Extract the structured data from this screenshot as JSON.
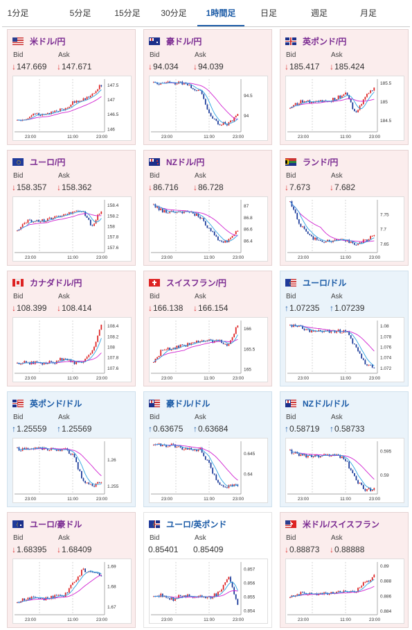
{
  "tabs": [
    "1分足",
    "5分足",
    "15分足",
    "30分足",
    "1時間足",
    "日足",
    "週足",
    "月足"
  ],
  "active_tab": 4,
  "labels": {
    "bid": "Bid",
    "ask": "Ask"
  },
  "x_ticks": [
    "23:00",
    "11:00",
    "23:00"
  ],
  "colors": {
    "up": "#d22",
    "down": "#1a3a9a",
    "ma1": "#d020d0",
    "ma2": "#2aa0e0"
  },
  "cards": [
    {
      "pair": "米ドル/円",
      "flag": "us",
      "dir": "down",
      "bid": "147.669",
      "ask": "147.671",
      "y_ticks": [
        "147.5",
        "147",
        "146.5",
        "146"
      ],
      "ylim": [
        145.9,
        147.7
      ],
      "trend": [
        146.3,
        146.4,
        146.5,
        146.5,
        146.6,
        146.7,
        146.9,
        147.0,
        147.2,
        147.5
      ]
    },
    {
      "pair": "豪ドル/円",
      "flag": "au",
      "dir": "down",
      "bid": "94.034",
      "ask": "94.039",
      "y_ticks": [
        "94.5",
        "94"
      ],
      "ylim": [
        93.6,
        94.9
      ],
      "trend": [
        94.8,
        94.8,
        94.8,
        94.8,
        94.7,
        94.6,
        94.0,
        93.8,
        93.8,
        94.0
      ]
    },
    {
      "pair": "英ポンド/円",
      "flag": "gb",
      "dir": "down",
      "bid": "185.417",
      "ask": "185.424",
      "y_ticks": [
        "185.5",
        "185",
        "184.5"
      ],
      "ylim": [
        184.2,
        185.6
      ],
      "trend": [
        184.8,
        185.0,
        185.0,
        185.0,
        185.0,
        185.1,
        185.2,
        184.7,
        185.1,
        185.4
      ]
    },
    {
      "pair": "ユーロ/円",
      "flag": "eu",
      "dir": "down",
      "bid": "158.357",
      "ask": "158.362",
      "y_ticks": [
        "158.4",
        "158.2",
        "158",
        "157.8",
        "157.6"
      ],
      "ylim": [
        157.5,
        158.5
      ],
      "trend": [
        157.9,
        158.1,
        158.1,
        158.1,
        158.2,
        158.2,
        158.3,
        158.3,
        158.0,
        158.3
      ]
    },
    {
      "pair": "NZドル/円",
      "flag": "nz",
      "dir": "down",
      "bid": "86.716",
      "ask": "86.728",
      "y_ticks": [
        "87",
        "86.8",
        "86.6",
        "86.4"
      ],
      "ylim": [
        86.2,
        87.1
      ],
      "trend": [
        87.0,
        86.9,
        86.9,
        86.9,
        86.9,
        86.8,
        86.6,
        86.4,
        86.4,
        86.6
      ]
    },
    {
      "pair": "ランド/円",
      "flag": "za",
      "dir": "down",
      "bid": "7.673",
      "ask": "7.682",
      "y_ticks": [
        "7.75",
        "7.7",
        "7.65"
      ],
      "ylim": [
        7.62,
        7.8
      ],
      "trend": [
        7.79,
        7.72,
        7.68,
        7.66,
        7.66,
        7.66,
        7.66,
        7.65,
        7.66,
        7.68
      ]
    },
    {
      "pair": "カナダドル/円",
      "flag": "ca",
      "dir": "down",
      "bid": "108.399",
      "ask": "108.414",
      "y_ticks": [
        "108.4",
        "108.2",
        "108",
        "107.8",
        "107.6"
      ],
      "ylim": [
        107.5,
        108.5
      ],
      "trend": [
        107.7,
        107.7,
        107.7,
        107.7,
        107.7,
        107.8,
        107.7,
        107.7,
        107.9,
        108.4
      ]
    },
    {
      "pair": "スイスフラン/円",
      "flag": "ch",
      "dir": "down",
      "bid": "166.138",
      "ask": "166.154",
      "y_ticks": [
        "166",
        "165.5",
        "165"
      ],
      "ylim": [
        164.9,
        166.2
      ],
      "trend": [
        165.2,
        165.5,
        165.5,
        165.6,
        165.6,
        165.7,
        165.7,
        165.7,
        165.6,
        166.1
      ]
    },
    {
      "pair": "ユーロ/ドル",
      "flag": "euus",
      "dir": "up",
      "bid": "1.07235",
      "ask": "1.07239",
      "y_ticks": [
        "1.08",
        "1.078",
        "1.076",
        "1.074",
        "1.072"
      ],
      "ylim": [
        1.071,
        1.081
      ],
      "trend": [
        1.08,
        1.08,
        1.079,
        1.079,
        1.079,
        1.079,
        1.079,
        1.076,
        1.073,
        1.072
      ]
    },
    {
      "pair": "英ポンド/ドル",
      "flag": "gbus",
      "dir": "up",
      "bid": "1.25559",
      "ask": "1.25569",
      "y_ticks": [
        "1.26",
        "1.255"
      ],
      "ylim": [
        1.2535,
        1.2635
      ],
      "trend": [
        1.262,
        1.262,
        1.262,
        1.262,
        1.262,
        1.262,
        1.261,
        1.256,
        1.255,
        1.256
      ]
    },
    {
      "pair": "豪ドル/ドル",
      "flag": "auus",
      "dir": "up",
      "bid": "0.63675",
      "ask": "0.63684",
      "y_ticks": [
        "0.645",
        "0.64"
      ],
      "ylim": [
        0.635,
        0.648
      ],
      "trend": [
        0.647,
        0.647,
        0.647,
        0.646,
        0.646,
        0.646,
        0.642,
        0.637,
        0.637,
        0.637
      ]
    },
    {
      "pair": "NZドル/ドル",
      "flag": "nzus",
      "dir": "up",
      "bid": "0.58719",
      "ask": "0.58733",
      "y_ticks": [
        "0.595",
        "0.59"
      ],
      "ylim": [
        0.586,
        0.597
      ],
      "trend": [
        0.595,
        0.594,
        0.594,
        0.594,
        0.594,
        0.594,
        0.593,
        0.589,
        0.587,
        0.587
      ]
    },
    {
      "pair": "ユーロ/豪ドル",
      "flag": "euau",
      "dir": "down",
      "bid": "1.68395",
      "ask": "1.68409",
      "y_ticks": [
        "1.69",
        "1.68",
        "1.67"
      ],
      "ylim": [
        1.666,
        1.692
      ],
      "trend": [
        1.672,
        1.674,
        1.674,
        1.674,
        1.675,
        1.675,
        1.682,
        1.688,
        1.687,
        1.685
      ]
    },
    {
      "pair": "ユーロ/英ポンド",
      "flag": "eugb",
      "dir": "flat",
      "bid": "0.85401",
      "ask": "0.85409",
      "y_ticks": [
        "0.857",
        "0.856",
        "0.855",
        "0.854"
      ],
      "ylim": [
        0.8537,
        0.8575
      ],
      "trend": [
        0.8551,
        0.8551,
        0.8548,
        0.8551,
        0.855,
        0.855,
        0.8549,
        0.8553,
        0.8565,
        0.8545
      ]
    },
    {
      "pair": "米ドル/スイスフラン",
      "flag": "usch",
      "dir": "down",
      "bid": "0.88873",
      "ask": "0.88888",
      "y_ticks": [
        "0.89",
        "0.888",
        "0.886",
        "0.884"
      ],
      "ylim": [
        0.8835,
        0.8905
      ],
      "trend": [
        0.886,
        0.8863,
        0.8862,
        0.8862,
        0.8864,
        0.8864,
        0.8866,
        0.8866,
        0.8878,
        0.8886
      ]
    }
  ]
}
